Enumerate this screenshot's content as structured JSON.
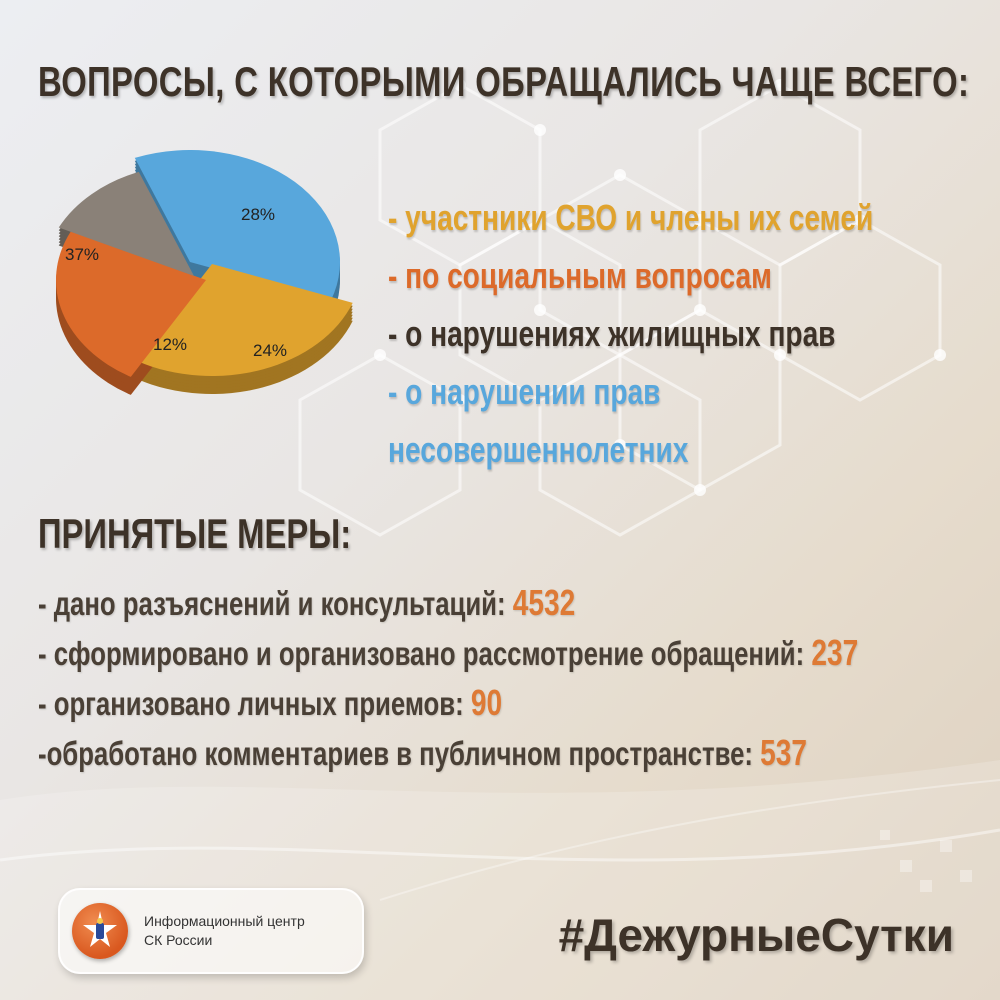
{
  "title": "ВОПРОСЫ, С КОТОРЫМИ ОБРАЩАЛИСЬ ЧАЩЕ ВСЕГО:",
  "colors": {
    "participants": "#e0a32e",
    "social": "#dc6a2a",
    "housing": "#8a8178",
    "minors": "#58a7dc",
    "accent_value": "#de7a35",
    "heading": "#3d3228"
  },
  "chart_data": {
    "type": "pie",
    "slices": [
      {
        "label": "- участники СВО и члены их семей",
        "value": 28,
        "value_label": "28%",
        "color": "#e0a32e"
      },
      {
        "label": "- по социальным вопросам",
        "value": 24,
        "value_label": "24%",
        "color": "#dc6a2a"
      },
      {
        "label": "- о нарушениях жилищных прав",
        "value": 12,
        "value_label": "12%",
        "color": "#8a8178"
      },
      {
        "label": "- о нарушении прав несовершеннолетних",
        "value": 37,
        "value_label": "37%",
        "color": "#58a7dc"
      }
    ]
  },
  "legend": {
    "item1": "- участники СВО и члены их семей",
    "item2": "- по социальным вопросам",
    "item3": "- о нарушениях жилищных прав",
    "item4_line1": "- о нарушении прав",
    "item4_line2": "несовершеннолетних"
  },
  "measures": {
    "title": "ПРИНЯТЫЕ МЕРЫ:",
    "items": [
      {
        "label": "- дано разъяснений и консультаций:",
        "value": "4532"
      },
      {
        "label": "- сформировано и организовано рассмотрение обращений:",
        "value": "237"
      },
      {
        "label": "- организовано личных приемов:",
        "value": "90"
      },
      {
        "label": "-обработано комментариев в публичном пространстве:",
        "value": "537"
      }
    ]
  },
  "footer": {
    "org_line1": "Информационный центр",
    "org_line2": "СК России",
    "logo_icon": "emblem-icon",
    "hashtag": "#ДежурныеСутки"
  }
}
